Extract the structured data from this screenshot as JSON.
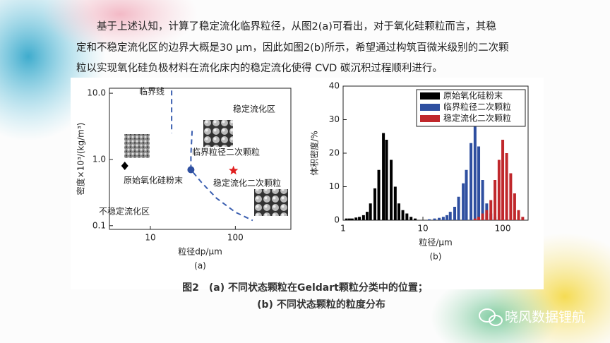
{
  "paragraph": {
    "lines": [
      "基于上述认知，计算了稳定流化临界粒径，从图2(a)可看出，对于氧化硅颗粒而言，其稳",
      "定和不稳定流化区的边界大概是30 μm，因此如图2(b)所示，希望通过构筑百微米级别的二次颗",
      "粒以实现氧化硅负极材料在流化床内的稳定流化使得 CVD 碳沉积过程顺利进行。"
    ]
  },
  "chart_data": [
    {
      "type": "scatter",
      "panel_label": "(a)",
      "x_label": "粒径dp/μm",
      "y_label": "密度×10³/(kg/m³)",
      "log_x": true,
      "log_y": true,
      "xlim": [
        3.3,
        450
      ],
      "ylim": [
        0.088,
        11.9
      ],
      "xticks": [
        10,
        100
      ],
      "yticks": [
        0.1,
        {
          "value": 1,
          "label": "1.0"
        },
        {
          "value": 10,
          "label": "10.0"
        }
      ],
      "series": [
        {
          "name": "原始氧化硅粉末",
          "color": "#000000",
          "marker": "diamond",
          "x": [
            5
          ],
          "values": [
            0.8
          ]
        },
        {
          "name": "临界粒径二次颗粒",
          "color": "#2e4fa0",
          "marker": "circle",
          "x": [
            30
          ],
          "values": [
            0.7
          ]
        },
        {
          "name": "稳定流化二次颗粒",
          "color": "#e02020",
          "marker": "star",
          "x": [
            95
          ],
          "values": [
            0.68
          ]
        }
      ],
      "lines": [
        {
          "name": "临界线",
          "color": "#3b5fb0",
          "x": [
            17.8,
            17.8
          ],
          "values": [
            11,
            2.5
          ]
        },
        {
          "color": "#3b5fb0",
          "x": [
            31,
            30,
            30,
            40,
            60,
            100,
            160
          ],
          "values": [
            2.7,
            1.2,
            0.7,
            0.45,
            0.26,
            0.16,
            0.12
          ]
        }
      ],
      "annotations": [
        "稳定流化区",
        "不稳定流化区"
      ]
    },
    {
      "type": "histogram",
      "panel_label": "(b)",
      "x_label": "粒径/μm",
      "y_label": "体积密度/%",
      "log_x": true,
      "xlim": [
        1,
        208
      ],
      "ylim": [
        0,
        40
      ],
      "xticks": [
        1,
        10,
        100
      ],
      "yticks": [
        0,
        10,
        20,
        30,
        40
      ],
      "legend": "top-right",
      "series": [
        {
          "name": "原始氧化硅粉末",
          "color": "#000000",
          "x": [
            1.1,
            1.2,
            1.3,
            1.45,
            1.6,
            1.8,
            2.0,
            2.2,
            2.5,
            2.8,
            3.2,
            3.5,
            4.0,
            4.5,
            5.0,
            5.6,
            6.3,
            7.1,
            8
          ],
          "values": [
            0.5,
            0.5,
            0.5,
            0.8,
            1,
            1.5,
            2.5,
            5,
            9.5,
            15,
            26,
            24,
            18,
            10,
            5,
            3,
            2,
            1,
            0.5
          ]
        },
        {
          "name": "临界粒径二次颗粒",
          "color": "#2e4fa0",
          "x": [
            12,
            14,
            16,
            18,
            20,
            22,
            25,
            28,
            32,
            35,
            40,
            45,
            50,
            56,
            63,
            71,
            80
          ],
          "values": [
            0.3,
            0.5,
            0.7,
            1,
            1.5,
            2.5,
            4,
            7,
            11,
            15,
            23,
            30,
            22,
            12,
            5,
            2,
            1
          ]
        },
        {
          "name": "稳定流化二次颗粒",
          "color": "#c0282c",
          "x": [
            45,
            50,
            56,
            63,
            71,
            80,
            90,
            100,
            112,
            126,
            141,
            158,
            178
          ],
          "values": [
            0.5,
            1,
            2,
            3,
            6,
            12,
            18,
            24,
            20,
            14,
            8,
            3,
            1
          ]
        }
      ]
    }
  ],
  "caption": {
    "line1": "图2　(a) 不同状态颗粒在Geldart颗粒分类中的位置；",
    "line2": "(b) 不同状态颗粒的粒度分布"
  },
  "watermark": "晓风数据锂航"
}
